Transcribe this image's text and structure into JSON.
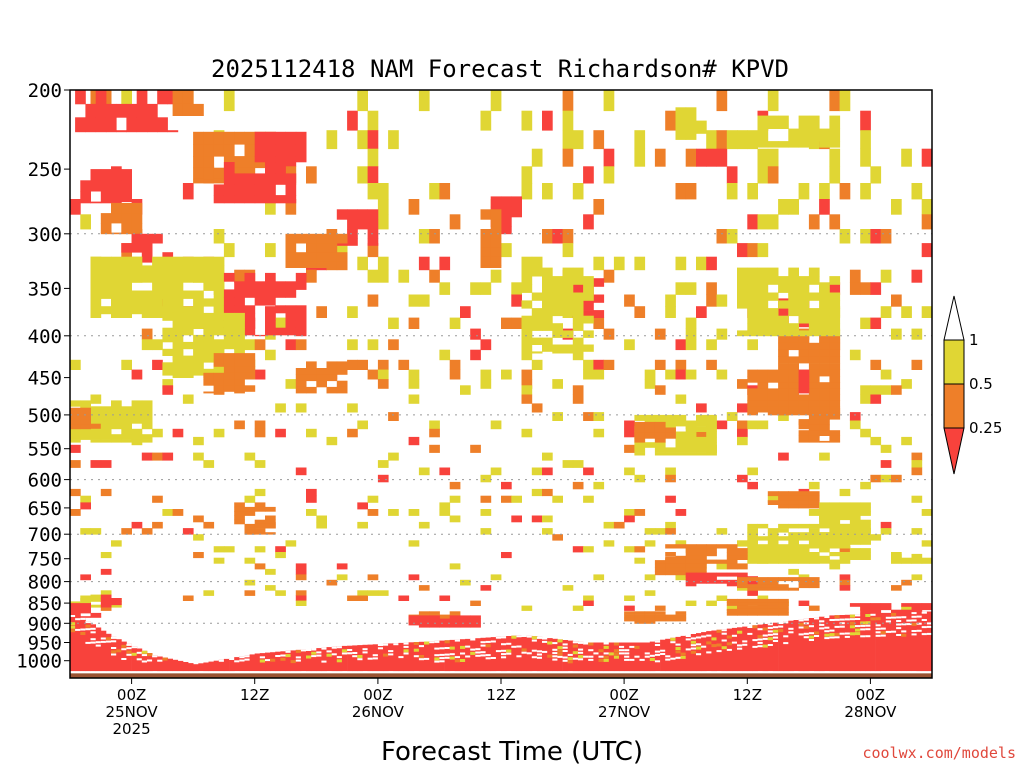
{
  "chart_data": {
    "type": "heatmap",
    "title": "2025112418 NAM Forecast Richardson# KPVD",
    "xlabel": "Forecast Time (UTC)",
    "ylabel": "",
    "x_axis": {
      "unit": "hours since 2025-11-24 18Z",
      "range": [
        0,
        84
      ],
      "ticks": [
        {
          "x": 6,
          "lines": [
            "00Z",
            "25NOV",
            "2025"
          ]
        },
        {
          "x": 18,
          "lines": [
            "12Z"
          ]
        },
        {
          "x": 30,
          "lines": [
            "00Z",
            "26NOV"
          ]
        },
        {
          "x": 42,
          "lines": [
            "12Z"
          ]
        },
        {
          "x": 54,
          "lines": [
            "00Z",
            "27NOV"
          ]
        },
        {
          "x": 66,
          "lines": [
            "12Z"
          ]
        },
        {
          "x": 78,
          "lines": [
            "00Z",
            "28NOV"
          ]
        }
      ]
    },
    "y_axis": {
      "unit": "hPa",
      "range": [
        1050,
        200
      ],
      "ticks": [
        200,
        250,
        300,
        350,
        400,
        450,
        500,
        550,
        600,
        650,
        700,
        750,
        800,
        850,
        900,
        950,
        1000
      ],
      "gridlines_at": [
        300,
        400,
        500,
        600,
        700,
        800,
        900
      ]
    },
    "legend": {
      "position": "right",
      "levels": [
        "1",
        "0.5",
        "0.25"
      ],
      "bins": [
        {
          "label": "> 1",
          "color": "#ffffff"
        },
        {
          "label": "0.5 - 1",
          "color": "#e0d634"
        },
        {
          "label": "0.25 - 0.5",
          "color": "#ee7f29"
        },
        {
          "label": "< 0.25",
          "color": "#f8423c"
        }
      ]
    },
    "colors": {
      "high": "#e0d634",
      "mid": "#ee7f29",
      "low": "#f8423c",
      "ground": "#9a5332"
    },
    "regions": [
      {
        "level": "low",
        "t": [
          0.5,
          10
        ],
        "p": [
          200,
          225
        ]
      },
      {
        "level": "mid",
        "t": [
          10,
          12.5
        ],
        "p": [
          200,
          215
        ]
      },
      {
        "level": "low",
        "t": [
          1,
          6
        ],
        "p": [
          250,
          275
        ]
      },
      {
        "level": "mid",
        "t": [
          3,
          7
        ],
        "p": [
          275,
          300
        ]
      },
      {
        "level": "low",
        "t": [
          5,
          10
        ],
        "p": [
          300,
          325
        ]
      },
      {
        "level": "high",
        "t": [
          2,
          15
        ],
        "p": [
          320,
          380
        ]
      },
      {
        "level": "mid",
        "t": [
          12,
          20
        ],
        "p": [
          225,
          260
        ]
      },
      {
        "level": "low",
        "t": [
          14,
          22
        ],
        "p": [
          245,
          275
        ]
      },
      {
        "level": "low",
        "t": [
          18,
          23
        ],
        "p": [
          225,
          245
        ]
      },
      {
        "level": "low",
        "t": [
          26,
          30
        ],
        "p": [
          280,
          310
        ]
      },
      {
        "level": "mid",
        "t": [
          21,
          27
        ],
        "p": [
          300,
          330
        ]
      },
      {
        "level": "low",
        "t": [
          15,
          23
        ],
        "p": [
          335,
          400
        ]
      },
      {
        "level": "high",
        "t": [
          9,
          17
        ],
        "p": [
          375,
          450
        ]
      },
      {
        "level": "mid",
        "t": [
          13,
          18
        ],
        "p": [
          420,
          470
        ]
      },
      {
        "level": "mid",
        "t": [
          22,
          27
        ],
        "p": [
          430,
          470
        ]
      },
      {
        "level": "low",
        "t": [
          41,
          44
        ],
        "p": [
          270,
          300
        ]
      },
      {
        "level": "mid",
        "t": [
          40,
          42
        ],
        "p": [
          280,
          330
        ]
      },
      {
        "level": "low",
        "t": [
          48,
          52
        ],
        "p": [
          340,
          380
        ]
      },
      {
        "level": "high",
        "t": [
          44,
          51
        ],
        "p": [
          330,
          420
        ]
      },
      {
        "level": "high",
        "t": [
          0,
          8
        ],
        "p": [
          480,
          540
        ]
      },
      {
        "level": "mid",
        "t": [
          0,
          2
        ],
        "p": [
          490,
          520
        ]
      },
      {
        "level": "high",
        "t": [
          0,
          5
        ],
        "p": [
          830,
          860
        ]
      },
      {
        "level": "low",
        "t": [
          0,
          3
        ],
        "p": [
          850,
          885
        ]
      },
      {
        "level": "mid",
        "t": [
          16,
          20
        ],
        "p": [
          640,
          700
        ]
      },
      {
        "level": "mid",
        "t": [
          57,
          62
        ],
        "p": [
          745,
          790
        ]
      },
      {
        "level": "low",
        "t": [
          60,
          67
        ],
        "p": [
          780,
          810
        ]
      },
      {
        "level": "mid",
        "t": [
          65,
          73
        ],
        "p": [
          790,
          820
        ]
      },
      {
        "level": "high",
        "t": [
          66,
          78
        ],
        "p": [
          680,
          760
        ]
      },
      {
        "level": "mid",
        "t": [
          58,
          66
        ],
        "p": [
          720,
          760
        ]
      },
      {
        "level": "high",
        "t": [
          67,
          75
        ],
        "p": [
          215,
          235
        ]
      },
      {
        "level": "high",
        "t": [
          59,
          62
        ],
        "p": [
          210,
          230
        ]
      },
      {
        "level": "mid",
        "t": [
          71,
          75
        ],
        "p": [
          490,
          540
        ]
      },
      {
        "level": "low",
        "t": [
          69,
          72
        ],
        "p": [
          360,
          390
        ]
      },
      {
        "level": "mid",
        "t": [
          69,
          75
        ],
        "p": [
          400,
          500
        ]
      },
      {
        "level": "mid",
        "t": [
          66,
          70
        ],
        "p": [
          440,
          500
        ]
      },
      {
        "level": "high",
        "t": [
          65,
          75
        ],
        "p": [
          330,
          400
        ]
      },
      {
        "level": "low",
        "t": [
          71,
          73
        ],
        "p": [
          440,
          470
        ]
      },
      {
        "level": "high",
        "t": [
          55,
          63
        ],
        "p": [
          500,
          560
        ]
      },
      {
        "level": "mid",
        "t": [
          55,
          59
        ],
        "p": [
          510,
          540
        ]
      },
      {
        "level": "mid",
        "t": [
          68,
          73
        ],
        "p": [
          620,
          650
        ]
      },
      {
        "level": "high",
        "t": [
          73,
          78
        ],
        "p": [
          640,
          720
        ]
      },
      {
        "level": "low",
        "t": [
          3,
          5
        ],
        "p": [
          830,
          860
        ]
      },
      {
        "level": "mid",
        "t": [
          33,
          38
        ],
        "p": [
          870,
          900
        ]
      },
      {
        "level": "low",
        "t": [
          33,
          40
        ],
        "p": [
          880,
          910
        ]
      },
      {
        "level": "mid",
        "t": [
          54,
          60
        ],
        "p": [
          870,
          900
        ]
      },
      {
        "level": "high",
        "t": [
          80,
          84
        ],
        "p": [
          740,
          760
        ]
      },
      {
        "level": "low",
        "t": [
          76,
          84
        ],
        "p": [
          850,
          880
        ]
      },
      {
        "level": "mid",
        "t": [
          64,
          70
        ],
        "p": [
          840,
          880
        ]
      }
    ],
    "scatter_blocks": [
      {
        "t": [
          0,
          84
        ],
        "p": [
          200,
          460
        ],
        "density": 0.18
      },
      {
        "t": [
          0,
          84
        ],
        "p": [
          460,
          860
        ],
        "density": 0.1
      }
    ],
    "surface_layer": [
      {
        "t": 0,
        "top": 870,
        "bottom": 1030
      },
      {
        "t": 4,
        "top": 935,
        "bottom": 1030
      },
      {
        "t": 8,
        "top": 985,
        "bottom": 1030
      },
      {
        "t": 12,
        "top": 1010,
        "bottom": 1030
      },
      {
        "t": 18,
        "top": 980,
        "bottom": 1030
      },
      {
        "t": 26,
        "top": 960,
        "bottom": 1030
      },
      {
        "t": 36,
        "top": 945,
        "bottom": 1030
      },
      {
        "t": 44,
        "top": 930,
        "bottom": 1030
      },
      {
        "t": 50,
        "top": 950,
        "bottom": 1030
      },
      {
        "t": 56,
        "top": 950,
        "bottom": 1030
      },
      {
        "t": 62,
        "top": 920,
        "bottom": 1030
      },
      {
        "t": 68,
        "top": 900,
        "bottom": 1030
      },
      {
        "t": 74,
        "top": 880,
        "bottom": 1030
      },
      {
        "t": 84,
        "top": 870,
        "bottom": 1030
      }
    ],
    "ground_pressure": 1030
  },
  "watermark": "coolwx.com/models"
}
